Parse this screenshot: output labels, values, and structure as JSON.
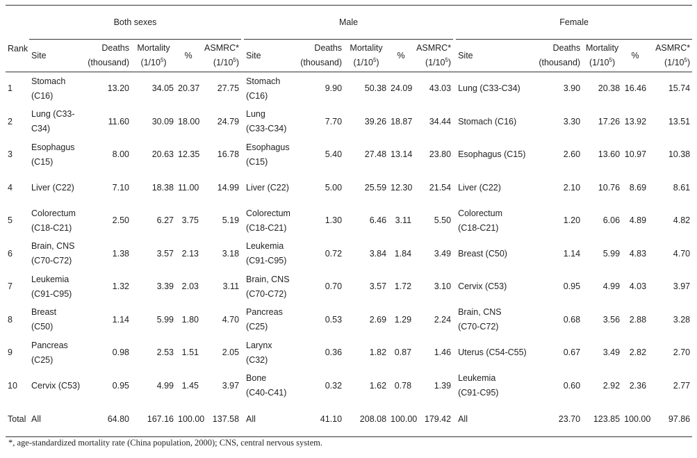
{
  "header": {
    "rank_label": "Rank",
    "groups": [
      "Both sexes",
      "Male",
      "Female"
    ],
    "columns": {
      "site": "Site",
      "deaths": "Deaths",
      "deaths_unit": "(thousand)",
      "mortality": "Mortality",
      "mortality_unit": "(1/10",
      "mortality_exp": "5",
      "pct": "%",
      "asmrc": "ASMRC*",
      "asmrc_unit": "(1/10",
      "asmrc_exp": "5"
    },
    "unit_close": ")"
  },
  "rows": [
    {
      "rank": "1",
      "both": {
        "site1": "Stomach",
        "site2": "(C16)",
        "deaths": "13.20",
        "mortality": "34.05",
        "pct": "20.37",
        "asmrc": "27.75"
      },
      "male": {
        "site1": "Stomach",
        "site2": "(C16)",
        "deaths": "9.90",
        "mortality": "50.38",
        "pct": "24.09",
        "asmrc": "43.03"
      },
      "female": {
        "site1": "Lung (C33-C34)",
        "site2": "",
        "deaths": "3.90",
        "mortality": "20.38",
        "pct": "16.46",
        "asmrc": "15.74"
      }
    },
    {
      "rank": "2",
      "both": {
        "site1": "Lung (C33-",
        "site2": "C34)",
        "deaths": "11.60",
        "mortality": "30.09",
        "pct": "18.00",
        "asmrc": "24.79"
      },
      "male": {
        "site1": "Lung",
        "site2": "(C33-C34)",
        "deaths": "7.70",
        "mortality": "39.26",
        "pct": "18.87",
        "asmrc": "34.44"
      },
      "female": {
        "site1": "Stomach (C16)",
        "site2": "",
        "deaths": "3.30",
        "mortality": "17.26",
        "pct": "13.92",
        "asmrc": "13.51"
      }
    },
    {
      "rank": "3",
      "both": {
        "site1": "Esophagus",
        "site2": "(C15)",
        "deaths": "8.00",
        "mortality": "20.63",
        "pct": "12.35",
        "asmrc": "16.78"
      },
      "male": {
        "site1": "Esophagus",
        "site2": "(C15)",
        "deaths": "5.40",
        "mortality": "27.48",
        "pct": "13.14",
        "asmrc": "23.80"
      },
      "female": {
        "site1": "Esophagus (C15)",
        "site2": "",
        "deaths": "2.60",
        "mortality": "13.60",
        "pct": "10.97",
        "asmrc": "10.38"
      }
    },
    {
      "rank": "4",
      "both": {
        "site1": "Liver (C22)",
        "site2": "",
        "deaths": "7.10",
        "mortality": "18.38",
        "pct": "11.00",
        "asmrc": "14.99"
      },
      "male": {
        "site1": "Liver (C22)",
        "site2": "",
        "deaths": "5.00",
        "mortality": "25.59",
        "pct": "12.30",
        "asmrc": "21.54"
      },
      "female": {
        "site1": "Liver (C22)",
        "site2": "",
        "deaths": "2.10",
        "mortality": "10.76",
        "pct": "8.69",
        "asmrc": "8.61"
      }
    },
    {
      "rank": "5",
      "both": {
        "site1": "Colorectum",
        "site2": "(C18-C21)",
        "deaths": "2.50",
        "mortality": "6.27",
        "pct": "3.75",
        "asmrc": "5.19"
      },
      "male": {
        "site1": "Colorectum",
        "site2": "(C18-C21)",
        "deaths": "1.30",
        "mortality": "6.46",
        "pct": "3.11",
        "asmrc": "5.50"
      },
      "female": {
        "site1": "Colorectum",
        "site2": "(C18-C21)",
        "deaths": "1.20",
        "mortality": "6.06",
        "pct": "4.89",
        "asmrc": "4.82"
      }
    },
    {
      "rank": "6",
      "both": {
        "site1": "Brain, CNS",
        "site2": "(C70-C72)",
        "deaths": "1.38",
        "mortality": "3.57",
        "pct": "2.13",
        "asmrc": "3.18"
      },
      "male": {
        "site1": "Leukemia",
        "site2": "(C91-C95)",
        "deaths": "0.72",
        "mortality": "3.84",
        "pct": "1.84",
        "asmrc": "3.49"
      },
      "female": {
        "site1": "Breast (C50)",
        "site2": "",
        "deaths": "1.14",
        "mortality": "5.99",
        "pct": "4.83",
        "asmrc": "4.70"
      }
    },
    {
      "rank": "7",
      "both": {
        "site1": "Leukemia",
        "site2": "(C91-C95)",
        "deaths": "1.32",
        "mortality": "3.39",
        "pct": "2.03",
        "asmrc": "3.11"
      },
      "male": {
        "site1": "Brain, CNS",
        "site2": "(C70-C72)",
        "deaths": "0.70",
        "mortality": "3.57",
        "pct": "1.72",
        "asmrc": "3.10"
      },
      "female": {
        "site1": "Cervix (C53)",
        "site2": "",
        "deaths": "0.95",
        "mortality": "4.99",
        "pct": "4.03",
        "asmrc": "3.97"
      }
    },
    {
      "rank": "8",
      "both": {
        "site1": "Breast",
        "site2": "(C50)",
        "deaths": "1.14",
        "mortality": "5.99",
        "pct": "1.80",
        "asmrc": "4.70"
      },
      "male": {
        "site1": "Pancreas",
        "site2": "(C25)",
        "deaths": "0.53",
        "mortality": "2.69",
        "pct": "1.29",
        "asmrc": "2.24"
      },
      "female": {
        "site1": "Brain, CNS",
        "site2": "(C70-C72)",
        "deaths": "0.68",
        "mortality": "3.56",
        "pct": "2.88",
        "asmrc": "3.28"
      }
    },
    {
      "rank": "9",
      "both": {
        "site1": "Pancreas",
        "site2": "(C25)",
        "deaths": "0.98",
        "mortality": "2.53",
        "pct": "1.51",
        "asmrc": "2.05"
      },
      "male": {
        "site1": "Larynx",
        "site2": "(C32)",
        "deaths": "0.36",
        "mortality": "1.82",
        "pct": "0.87",
        "asmrc": "1.46"
      },
      "female": {
        "site1": "Uterus (C54-C55)",
        "site2": "",
        "deaths": "0.67",
        "mortality": "3.49",
        "pct": "2.82",
        "asmrc": "2.70"
      }
    },
    {
      "rank": "10",
      "both": {
        "site1": "Cervix (C53)",
        "site2": "",
        "deaths": "0.95",
        "mortality": "4.99",
        "pct": "1.45",
        "asmrc": "3.97"
      },
      "male": {
        "site1": "Bone",
        "site2": "(C40-C41)",
        "deaths": "0.32",
        "mortality": "1.62",
        "pct": "0.78",
        "asmrc": "1.39"
      },
      "female": {
        "site1": "Leukemia",
        "site2": "(C91-C95)",
        "deaths": "0.60",
        "mortality": "2.92",
        "pct": "2.36",
        "asmrc": "2.77"
      }
    }
  ],
  "total": {
    "rank": "Total",
    "both": {
      "site": "All",
      "deaths": "64.80",
      "mortality": "167.16",
      "pct": "100.00",
      "asmrc": "137.58"
    },
    "male": {
      "site": "All",
      "deaths": "41.10",
      "mortality": "208.08",
      "pct": "100.00",
      "asmrc": "179.42"
    },
    "female": {
      "site": "All",
      "deaths": "23.70",
      "mortality": "123.85",
      "pct": "100.00",
      "asmrc": "97.86"
    }
  },
  "footnote": "*, age-standardized mortality rate (China population, 2000); CNS, central nervous system."
}
